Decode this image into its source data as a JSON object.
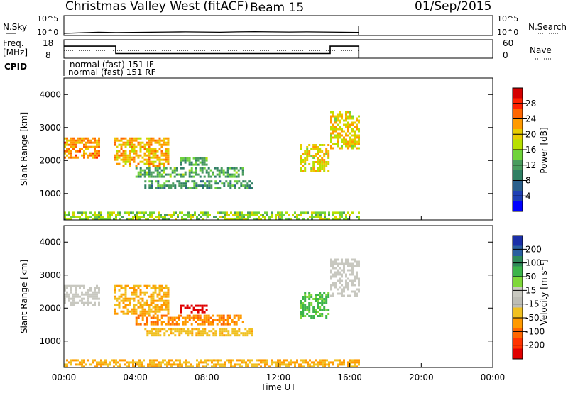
{
  "header": {
    "station": "Christmas Valley West (fitACF)",
    "beam": "Beam 15",
    "date": "01/Sep/2015"
  },
  "colors": {
    "line": "#000000",
    "background": "#ffffff"
  },
  "chart_data": [
    {
      "type": "line",
      "name": "nsky-panel",
      "left_label": "N.Sky",
      "right_label": "N.Search",
      "left_ticks": [
        "10^5",
        "10^0"
      ],
      "right_ticks": [
        "10^5",
        "10^0"
      ],
      "x_range_hours": [
        0,
        24
      ],
      "data_end_hours": 16.5,
      "nsky_log10": [
        0.2,
        0.35,
        0.5,
        0.4,
        0.45,
        0.5,
        0.55,
        0.6,
        0.55,
        0.5,
        0.6,
        0.65,
        0.6,
        0.55,
        0.6,
        0.55,
        0.5,
        0.45
      ]
    },
    {
      "type": "line",
      "name": "freq-panel",
      "left_label_top": "Freq.",
      "left_label_bottom": "[MHz]",
      "right_label": "Nave",
      "left_ticks": [
        "18",
        "8"
      ],
      "right_ticks": [
        "60",
        "0"
      ],
      "freq_ylim": [
        8,
        18
      ],
      "nave_ylim": [
        0,
        60
      ],
      "freq_steps": [
        {
          "start": 0.0,
          "end": 2.9,
          "freq": 14.5
        },
        {
          "start": 2.9,
          "end": 14.9,
          "freq": 10.5
        },
        {
          "start": 14.9,
          "end": 16.5,
          "freq": 14.5
        }
      ],
      "nave": [
        {
          "start": 0.0,
          "end": 16.5,
          "value": 25
        }
      ]
    },
    {
      "type": "table",
      "name": "cpid-panel",
      "label": "CPID",
      "entries": [
        "normal (fast) 151 IF",
        "normal (fast) 151 RF"
      ]
    },
    {
      "type": "heatmap",
      "name": "power-panel",
      "ylabel": "Slant Range [km]",
      "y_ticks": [
        1000,
        2000,
        3000,
        4000
      ],
      "ylim": [
        200,
        4500
      ],
      "x_range_hours": [
        0,
        24
      ],
      "colorbar_label": "Power [dB]",
      "colorbar_ticks": [
        "28",
        "24",
        "20",
        "16",
        "12",
        "8",
        "4"
      ],
      "colorbar_colors": [
        "#d40000",
        "#ff2200",
        "#ff6600",
        "#ff9a00",
        "#e8cc00",
        "#b7e000",
        "#6fd33a",
        "#4a9c5e",
        "#2f7f64",
        "#2a5f8c",
        "#1e3fb4",
        "#0000ff"
      ],
      "echo_regions": [
        {
          "t0": 0.0,
          "t1": 2.0,
          "r0": 2100,
          "r1": 2700,
          "level": 24
        },
        {
          "t0": 2.8,
          "t1": 5.8,
          "r0": 1800,
          "r1": 2700,
          "level": 22
        },
        {
          "t0": 4.0,
          "t1": 10.0,
          "r0": 1500,
          "r1": 1800,
          "level": 12
        },
        {
          "t0": 4.5,
          "t1": 10.5,
          "r0": 1200,
          "r1": 1400,
          "level": 10
        },
        {
          "t0": 6.5,
          "t1": 8.0,
          "r0": 1900,
          "r1": 2100,
          "level": 12
        },
        {
          "t0": 13.2,
          "t1": 14.8,
          "r0": 1700,
          "r1": 2500,
          "level": 20
        },
        {
          "t0": 14.9,
          "t1": 16.5,
          "r0": 2400,
          "r1": 3500,
          "level": 20
        },
        {
          "t0": 0.0,
          "t1": 16.5,
          "r0": 200,
          "r1": 450,
          "level": 16
        }
      ]
    },
    {
      "type": "heatmap",
      "name": "velocity-panel",
      "ylabel": "Slant Range [km]",
      "y_ticks": [
        1000,
        2000,
        3000,
        4000
      ],
      "ylim": [
        200,
        4500
      ],
      "x_range_hours": [
        0,
        24
      ],
      "x_tick_labels": [
        "00:00",
        "04:00",
        "08:00",
        "12:00",
        "16:00",
        "20:00",
        "00:00"
      ],
      "xlabel": "Time UT",
      "colorbar_label": "Velocity [m s⁻¹]",
      "colorbar_ticks": [
        "200",
        "100",
        "50",
        "15",
        "-15",
        "-50",
        "-100",
        "-200"
      ],
      "colorbar_colors": [
        "#1b2fa8",
        "#2a5fa0",
        "#2f8a5a",
        "#3cb44a",
        "#7fd83a",
        "#c8c8c0",
        "#bdbdb5",
        "#f0c020",
        "#ff9a00",
        "#ff6600",
        "#ff3300",
        "#e00000"
      ],
      "echo_regions": [
        {
          "t0": 0.0,
          "t1": 2.0,
          "r0": 2100,
          "r1": 2700,
          "vel": 0
        },
        {
          "t0": 2.8,
          "t1": 5.8,
          "r0": 1800,
          "r1": 2700,
          "vel": -40
        },
        {
          "t0": 4.0,
          "t1": 10.0,
          "r0": 1500,
          "r1": 1800,
          "vel": -70
        },
        {
          "t0": 6.5,
          "t1": 8.0,
          "r0": 1900,
          "r1": 2100,
          "vel": -200
        },
        {
          "t0": 4.5,
          "t1": 10.5,
          "r0": 1200,
          "r1": 1400,
          "vel": -30
        },
        {
          "t0": 13.2,
          "t1": 14.8,
          "r0": 1700,
          "r1": 2500,
          "vel": 40
        },
        {
          "t0": 14.9,
          "t1": 16.5,
          "r0": 2400,
          "r1": 3500,
          "vel": 0
        },
        {
          "t0": 0.0,
          "t1": 16.5,
          "r0": 200,
          "r1": 450,
          "vel": -40
        }
      ]
    }
  ]
}
